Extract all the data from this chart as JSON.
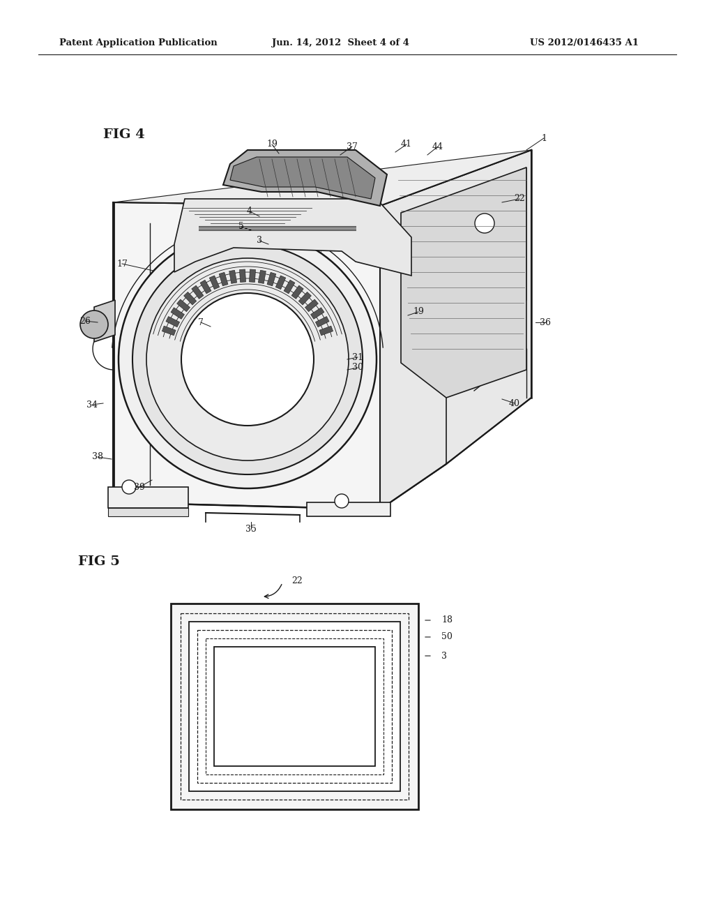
{
  "header_left": "Patent Application Publication",
  "header_mid": "Jun. 14, 2012  Sheet 4 of 4",
  "header_right": "US 2012/0146435 A1",
  "fig4_label": "FIG 4",
  "fig5_label": "FIG 5",
  "bg_color": "#ffffff",
  "line_color": "#1a1a1a",
  "gray_light": "#e0e0e0",
  "gray_mid": "#c0c0c0",
  "gray_dark": "#888888"
}
